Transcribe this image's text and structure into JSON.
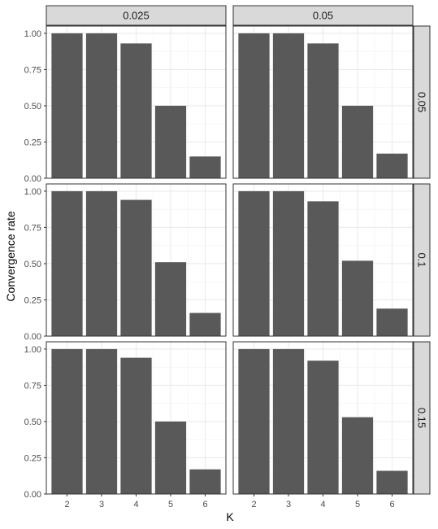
{
  "chart_data": {
    "type": "bar",
    "facet_columns": [
      "0.025",
      "0.05"
    ],
    "facet_rows": [
      "0.05",
      "0.1",
      "0.15"
    ],
    "xlabel": "K",
    "ylabel": "Convergence rate",
    "categories": [
      "2",
      "3",
      "4",
      "5",
      "6"
    ],
    "ylim": [
      0,
      1.05
    ],
    "yticks": [
      0.0,
      0.25,
      0.5,
      0.75,
      1.0
    ],
    "ytick_labels": [
      "0.00",
      "0.25",
      "0.50",
      "0.75",
      "1.00"
    ],
    "grid": true,
    "panels": [
      {
        "row": "0.05",
        "col": "0.025",
        "values": [
          1.0,
          1.0,
          0.93,
          0.5,
          0.15
        ]
      },
      {
        "row": "0.05",
        "col": "0.05",
        "values": [
          1.0,
          1.0,
          0.93,
          0.5,
          0.17
        ]
      },
      {
        "row": "0.1",
        "col": "0.025",
        "values": [
          1.0,
          1.0,
          0.94,
          0.51,
          0.16
        ]
      },
      {
        "row": "0.1",
        "col": "0.05",
        "values": [
          1.0,
          1.0,
          0.93,
          0.52,
          0.19
        ]
      },
      {
        "row": "0.15",
        "col": "0.025",
        "values": [
          1.0,
          1.0,
          0.94,
          0.5,
          0.17
        ]
      },
      {
        "row": "0.15",
        "col": "0.05",
        "values": [
          1.0,
          1.0,
          0.92,
          0.53,
          0.16
        ]
      }
    ]
  }
}
